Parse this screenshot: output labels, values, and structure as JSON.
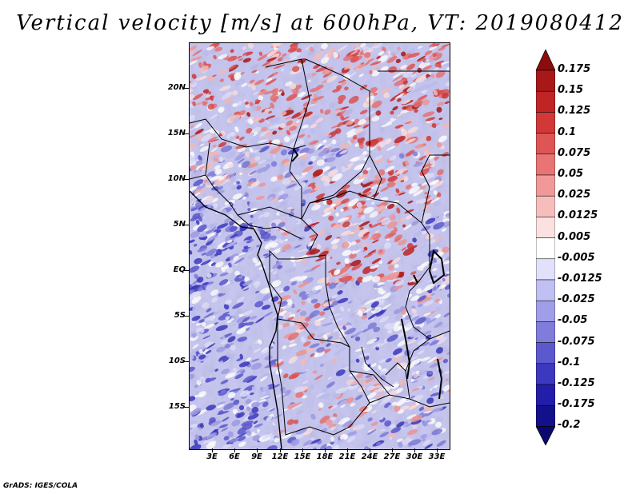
{
  "title": "Vertical velocity [m/s] at 600hPa, VT: 2019080412",
  "footer": "GrADS: IGES/COLA",
  "lat_labels": [
    "20N",
    "15N",
    "10N",
    "5N",
    "EQ",
    "5S",
    "10S",
    "15S"
  ],
  "lon_labels": [
    "3E",
    "6E",
    "9E",
    "12E",
    "15E",
    "18E",
    "21E",
    "24E",
    "27E",
    "30E",
    "33E"
  ],
  "colorbar": {
    "labels": [
      "0.175",
      "0.15",
      "0.125",
      "0.1",
      "0.075",
      "0.05",
      "0.025",
      "0.0125",
      "0.005",
      "-0.005",
      "-0.0125",
      "-0.025",
      "-0.05",
      "-0.075",
      "-0.1",
      "-0.125",
      "-0.175",
      "-0.2"
    ],
    "colors": [
      "#8b0c0c",
      "#a81818",
      "#c02424",
      "#d23838",
      "#df5454",
      "#e87474",
      "#f19898",
      "#f7bdbd",
      "#fce1e1",
      "#ffffff",
      "#e1e1fb",
      "#c0c0f2",
      "#a09ee8",
      "#7f7cdc",
      "#5c59cf",
      "#3c38bf",
      "#221eaa",
      "#13108c",
      "#0a0870"
    ]
  },
  "map": {
    "lon_range": [
      0,
      35.5
    ],
    "lat_range": [
      -20,
      24.5
    ]
  }
}
